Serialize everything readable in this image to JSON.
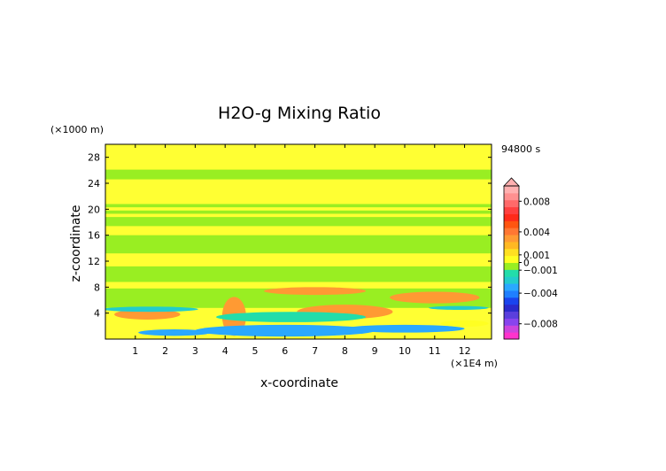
{
  "chart_data": {
    "type": "heatmap",
    "title": "H2O-g Mixing Ratio",
    "xlabel": "x-coordinate",
    "ylabel": "z-coordinate",
    "x_unit": "(×1E4 m)",
    "y_unit": "(×1000 m)",
    "time_label": "94800 s",
    "xlim": [
      0,
      12.9
    ],
    "ylim": [
      0,
      30
    ],
    "x_ticks": [
      "1",
      "2",
      "3",
      "4",
      "5",
      "6",
      "7",
      "8",
      "9",
      "10",
      "11",
      "12"
    ],
    "y_ticks": [
      "4",
      "8",
      "12",
      "16",
      "20",
      "24",
      "28"
    ],
    "colorbar": {
      "range": [
        -0.01,
        0.01
      ],
      "tick_labels": [
        {
          "label": "0.008",
          "value": 0.008
        },
        {
          "label": "0.004",
          "value": 0.004
        },
        {
          "label": "0.001",
          "value": 0.001
        },
        {
          "label": "0",
          "value": 0
        },
        {
          "label": "−0.001",
          "value": -0.001
        },
        {
          "label": "−0.004",
          "value": -0.004
        },
        {
          "label": "−0.008",
          "value": -0.008
        }
      ],
      "colors": [
        "#ff33cc",
        "#cc44dd",
        "#8844ee",
        "#5a3fdd",
        "#2a2acc",
        "#1a44ee",
        "#1f7fff",
        "#2aa8ff",
        "#22cccc",
        "#22ddaa",
        "#99ee22",
        "#ffff22",
        "#ffe022",
        "#ffb822",
        "#ff9a33",
        "#ff7733",
        "#ff5511",
        "#ff2a1a",
        "#ff4040",
        "#ff6a6a",
        "#ff9090",
        "#ffb0b0"
      ],
      "background_color": "#ffff33"
    },
    "features": [
      {
        "value": -0.0005,
        "z_range": [
          24.6,
          26.1
        ],
        "x_range": [
          0,
          12.9
        ],
        "desc": "green band"
      },
      {
        "value": -0.0005,
        "z_range": [
          20.3,
          20.8
        ],
        "x_range": [
          0,
          12.9
        ]
      },
      {
        "value": -0.0005,
        "z_range": [
          19.3,
          19.8
        ],
        "x_range": [
          0,
          12.9
        ]
      },
      {
        "value": -0.0005,
        "z_range": [
          17.4,
          18.8
        ],
        "x_range": [
          0,
          12.9
        ]
      },
      {
        "value": -0.0005,
        "z_range": [
          13.2,
          16.0
        ],
        "x_range": [
          0,
          12.9
        ]
      },
      {
        "value": -0.0005,
        "z_range": [
          8.8,
          11.2
        ],
        "x_range": [
          0,
          12.9
        ]
      },
      {
        "value": -0.0005,
        "z_range": [
          4.8,
          7.8
        ],
        "x_range": [
          0,
          12.9
        ]
      },
      {
        "value": 0.0035,
        "center": [
          4.3,
          3.5
        ],
        "radius": [
          0.4,
          3.0
        ]
      },
      {
        "value": 0.0035,
        "center": [
          1.4,
          3.8
        ],
        "radius": [
          1.1,
          0.8
        ]
      },
      {
        "value": 0.0035,
        "center": [
          8.0,
          4.2
        ],
        "radius": [
          1.6,
          1.1
        ]
      },
      {
        "value": 0.0035,
        "center": [
          11.0,
          6.4
        ],
        "radius": [
          1.5,
          0.9
        ]
      },
      {
        "value": 0.0035,
        "center": [
          7.0,
          7.4
        ],
        "radius": [
          1.7,
          0.6
        ]
      },
      {
        "value": -0.0035,
        "center": [
          6.0,
          1.3
        ],
        "radius": [
          3.0,
          0.9
        ]
      },
      {
        "value": -0.0035,
        "center": [
          2.3,
          1.0
        ],
        "radius": [
          1.2,
          0.5
        ]
      },
      {
        "value": -0.0035,
        "center": [
          10.0,
          1.6
        ],
        "radius": [
          2.0,
          0.6
        ]
      },
      {
        "value": -0.0025,
        "center": [
          1.5,
          4.6
        ],
        "radius": [
          1.6,
          0.4
        ]
      },
      {
        "value": -0.0025,
        "center": [
          11.8,
          4.8
        ],
        "radius": [
          1.0,
          0.3
        ]
      },
      {
        "value": -0.0015,
        "center": [
          6.2,
          3.4
        ],
        "radius": [
          2.5,
          0.8
        ]
      },
      {
        "value": 0.0002,
        "center": [
          12.0,
          2.4
        ],
        "radius": [
          0.8,
          0.5
        ]
      }
    ]
  }
}
